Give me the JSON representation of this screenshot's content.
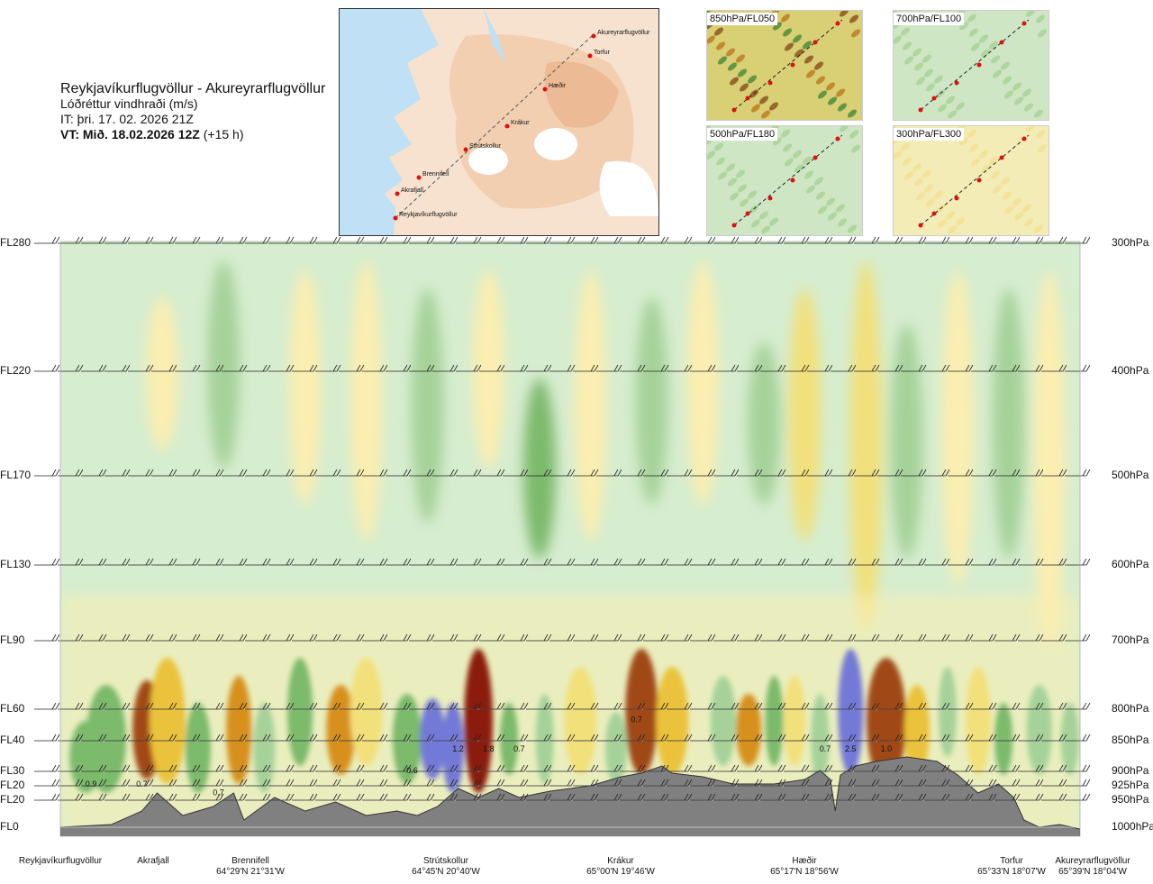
{
  "header": {
    "title": "Reykjavíkurflugvöllur - Akureyrarflugvöllur",
    "variable": "Lóðréttur vindhraði (m/s)",
    "it": "IT: þri. 17. 02. 2026 21Z",
    "vt_bold": "VT: Mið. 18.02.2026 12Z",
    "vt_rest": " (+15 h)"
  },
  "map": {
    "points": [
      {
        "label": "Akureyrarflugvöllur"
      },
      {
        "label": "Torfur"
      },
      {
        "label": "Hæðir"
      },
      {
        "label": "Krákur"
      },
      {
        "label": "Strútskollur"
      },
      {
        "label": "Brennifell"
      },
      {
        "label": "Akrafjall"
      },
      {
        "label": "Reykjavíkurflugvöllur"
      }
    ]
  },
  "minimaps": [
    {
      "label": "850hPa/FL050",
      "style": "mixed"
    },
    {
      "label": "700hPa/FL100",
      "style": "green"
    },
    {
      "label": "500hPa/FL180",
      "style": "green"
    },
    {
      "label": "300hPa/FL300",
      "style": "yellow"
    }
  ],
  "chart_data": {
    "type": "heatmap",
    "title": "Reykjavíkurflugvöllur - Akureyrarflugvöllur",
    "variable": "Lóðréttur vindhraði (m/s)",
    "y_levels": [
      {
        "fl": "FL280",
        "hpa": "300hPa",
        "p": 300
      },
      {
        "fl": "FL220",
        "hpa": "400hPa",
        "p": 400
      },
      {
        "fl": "FL170",
        "hpa": "500hPa",
        "p": 500
      },
      {
        "fl": "FL130",
        "hpa": "600hPa",
        "p": 600
      },
      {
        "fl": "FL90",
        "hpa": "700hPa",
        "p": 700
      },
      {
        "fl": "FL60",
        "hpa": "800hPa",
        "p": 800
      },
      {
        "fl": "FL40",
        "hpa": "850hPa",
        "p": 850
      },
      {
        "fl": "FL30",
        "hpa": "900hPa",
        "p": 900
      },
      {
        "fl": "FL20",
        "hpa": "925hPa",
        "p": 925
      },
      {
        "fl": "FL20",
        "hpa": "950hPa",
        "p": 950
      },
      {
        "fl": "FL0",
        "hpa": "1000hPa",
        "p": 1000
      }
    ],
    "waypoints": [
      {
        "name": "Reykjavíkurflugvöllur",
        "coord": "",
        "dist": 0.0
      },
      {
        "name": "Akrafjall",
        "coord": "",
        "dist": 0.09
      },
      {
        "name": "Brennifell",
        "coord": "64°29'N 21°31'W",
        "dist": 0.19
      },
      {
        "name": "Strútskollur",
        "coord": "64°45'N 20°40'W",
        "dist": 0.395
      },
      {
        "name": "Krákur",
        "coord": "65°00'N 19°46'W",
        "dist": 0.585
      },
      {
        "name": "Hæðir",
        "coord": "65°17'N 18°56'W",
        "dist": 0.77
      },
      {
        "name": "Torfur",
        "coord": "65°33'N 18°07'W",
        "dist": 0.955
      },
      {
        "name": "Akureyrarflugvöllur",
        "coord": "65°39'N 18°04'W",
        "dist": 1.0
      }
    ],
    "extrema": [
      {
        "label": "0.9",
        "dist": 0.03,
        "p": 920
      },
      {
        "label": "0.7",
        "dist": 0.08,
        "p": 920
      },
      {
        "label": "0.7",
        "dist": 0.155,
        "p": 935
      },
      {
        "label": "0.6",
        "dist": 0.345,
        "p": 897
      },
      {
        "label": "1.2",
        "dist": 0.39,
        "p": 862
      },
      {
        "label": "1.8",
        "dist": 0.42,
        "p": 862
      },
      {
        "label": "0.7",
        "dist": 0.45,
        "p": 862
      },
      {
        "label": "0.7",
        "dist": 0.565,
        "p": 815
      },
      {
        "label": "0.7",
        "dist": 0.75,
        "p": 862
      },
      {
        "label": "2.5",
        "dist": 0.775,
        "p": 862
      },
      {
        "label": "1.0",
        "dist": 0.81,
        "p": 862
      }
    ],
    "colorscale": [
      {
        "value": -3.0,
        "color": "#7cba6c"
      },
      {
        "value": -1.0,
        "color": "#a6d29a"
      },
      {
        "value": -0.3,
        "color": "#cde7c5"
      },
      {
        "value": 0.0,
        "color": "#fffbd4"
      },
      {
        "value": 0.3,
        "color": "#fbeeb0"
      },
      {
        "value": 0.6,
        "color": "#f2e07a"
      },
      {
        "value": 1.0,
        "color": "#ebc23b"
      },
      {
        "value": 1.5,
        "color": "#d7901f"
      },
      {
        "value": 2.0,
        "color": "#a14a15"
      },
      {
        "value": 3.0,
        "color": "#8b1a10"
      }
    ]
  }
}
